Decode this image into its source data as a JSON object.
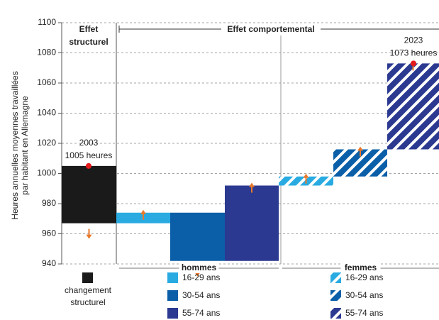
{
  "chart_data": {
    "type": "waterfall",
    "y_label": [
      "Heures annuelles moyennes travaillées",
      "par habitant en Allemagne"
    ],
    "ylim": [
      940,
      1100
    ],
    "yticks": [
      940,
      960,
      980,
      1000,
      1020,
      1040,
      1060,
      1080,
      1100
    ],
    "grid": true,
    "sections": [
      {
        "lines": [
          "Effet",
          "structurel"
        ]
      },
      {
        "lines": [
          "Effet comportemental"
        ]
      }
    ],
    "start": {
      "label": "2003",
      "value": 1005,
      "value_label": "1005 heures"
    },
    "end": {
      "label": "2023",
      "value": 1073,
      "value_label": "1073 heures"
    },
    "groups": [
      "hommes",
      "femmes"
    ],
    "steps": [
      {
        "name": [
          "changement",
          "structurel"
        ],
        "color": "#1a1a1a",
        "hatched": false,
        "value": -38
      },
      {
        "name": [
          "16-29 ans"
        ],
        "group": 0,
        "color": "#29abe2",
        "hatched": false,
        "value": 7
      },
      {
        "name": [
          "30-54 ans"
        ],
        "group": 0,
        "color": "#0a5fa8",
        "hatched": false,
        "value": -32
      },
      {
        "name": [
          "55-74 ans"
        ],
        "group": 0,
        "color": "#2b3990",
        "hatched": false,
        "value": 50
      },
      {
        "name": [
          "16-29 ans"
        ],
        "group": 1,
        "color": "#29abe2",
        "hatched": true,
        "value": 6
      },
      {
        "name": [
          "30-54 ans"
        ],
        "group": 1,
        "color": "#0a5fa8",
        "hatched": true,
        "value": 18
      },
      {
        "name": [
          "55-74 ans"
        ],
        "group": 1,
        "color": "#2b3990",
        "hatched": true,
        "value": 57
      }
    ]
  }
}
